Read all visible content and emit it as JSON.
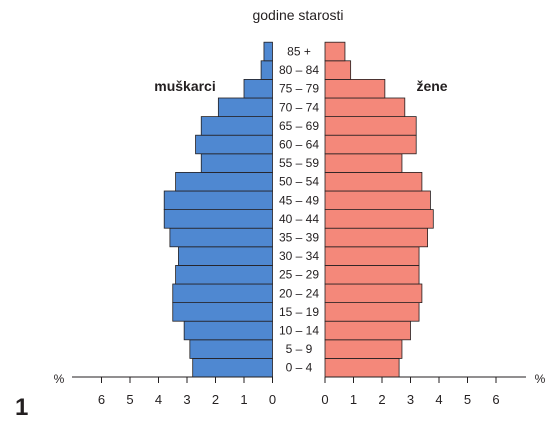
{
  "figure_number": "1",
  "chart_data": {
    "type": "bar",
    "subtype": "population-pyramid",
    "title": "godine starosti",
    "unit": "%",
    "categories": [
      "0 – 4",
      "5 – 9",
      "10 – 14",
      "15 – 19",
      "20 – 24",
      "25 – 29",
      "30 – 34",
      "35 – 39",
      "40 – 44",
      "45 – 49",
      "50 – 54",
      "55 – 59",
      "60 – 64",
      "65 – 69",
      "70 – 74",
      "75 – 79",
      "80 – 84",
      "85 +"
    ],
    "series": [
      {
        "name": "muškarci",
        "side": "left",
        "color": "#4f88d1",
        "values": [
          2.8,
          2.9,
          3.1,
          3.5,
          3.5,
          3.4,
          3.3,
          3.6,
          3.8,
          3.8,
          3.4,
          2.5,
          2.7,
          2.5,
          1.9,
          1.0,
          0.4,
          0.3
        ]
      },
      {
        "name": "žene",
        "side": "right",
        "color": "#f4887a",
        "values": [
          2.6,
          2.7,
          3.0,
          3.3,
          3.4,
          3.3,
          3.3,
          3.6,
          3.8,
          3.7,
          3.4,
          2.7,
          3.2,
          3.2,
          2.8,
          2.1,
          0.9,
          0.7
        ]
      }
    ],
    "left_axis": {
      "ticks": [
        6,
        5,
        4,
        3,
        2,
        1,
        0
      ],
      "range": [
        0,
        6
      ]
    },
    "right_axis": {
      "ticks": [
        0,
        1,
        2,
        3,
        4,
        5,
        6
      ],
      "range": [
        0,
        6
      ]
    },
    "grid": false,
    "legend": "inline labels beside bars"
  }
}
